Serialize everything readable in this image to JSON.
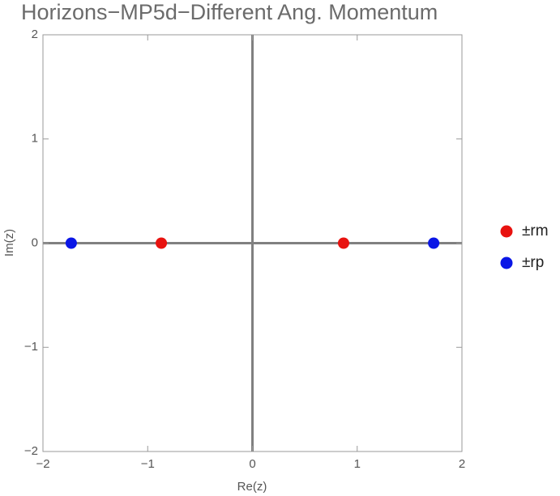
{
  "chart_data": {
    "type": "scatter",
    "title": "Horizons−MP5d−Different Ang. Momentum",
    "x_label": "Re(z)",
    "y_label": "Im(z)",
    "series": [
      {
        "name": "±rm",
        "color": "#e8120f",
        "x": [
          -0.87,
          0.87
        ],
        "values": [
          0,
          0
        ]
      },
      {
        "name": "±rp",
        "color": "#0a16e6",
        "x": [
          -1.73,
          1.73
        ],
        "values": [
          0,
          0
        ]
      }
    ],
    "xlim": [
      -2,
      2
    ],
    "ylim": [
      -2,
      2
    ],
    "xticks": [
      {
        "value": -2,
        "label": "−2"
      },
      {
        "value": -1,
        "label": "−1"
      },
      0,
      1,
      2
    ],
    "yticks": [
      {
        "value": -2,
        "label": "−2"
      },
      {
        "value": -1,
        "label": "−1"
      },
      0,
      1,
      2
    ],
    "grid": false,
    "legend": "right"
  }
}
